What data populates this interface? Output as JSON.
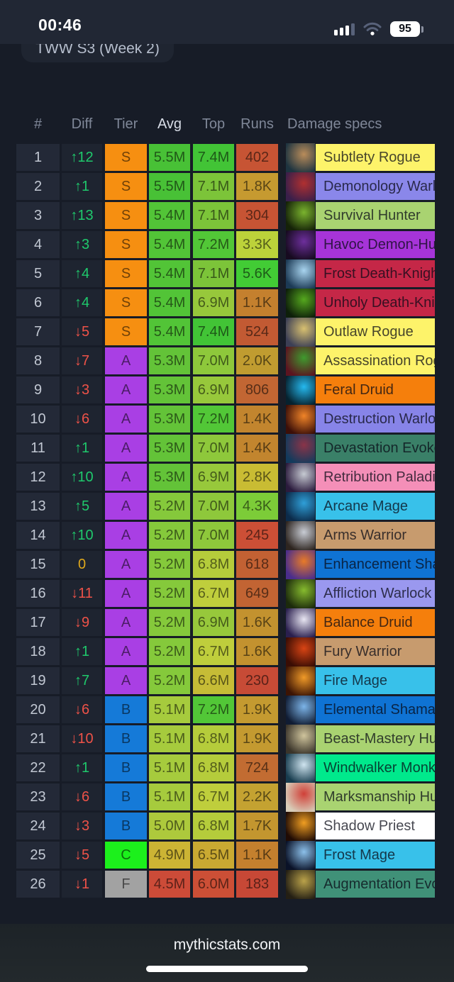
{
  "status_bar": {
    "time": "00:46",
    "battery_percent": "95",
    "signal_icon": "cellular-signal-3-of-4",
    "wifi_icon": "wifi-weak"
  },
  "header_tab": {
    "clipped_text": "TWW S3 (Week 2)"
  },
  "table": {
    "columns": [
      "#",
      "Diff",
      "Tier",
      "Avg",
      "Top",
      "Runs",
      "Damage specs"
    ],
    "sorted_column": "Avg",
    "diff_colors": {
      "up": "#1fc96c",
      "down": "#ee5248",
      "zero": "#dfa81c"
    },
    "tier_colors": {
      "S": "#f68f11",
      "A": "#a93fe4",
      "B": "#157ad8",
      "C": "#1cf01c",
      "F": "#a2a2a2"
    },
    "rows": [
      {
        "rank": "1",
        "diff": "↑12",
        "dir": "up",
        "tier": "S",
        "avg": "5.5M",
        "avg_color": "#48c136",
        "top": "7.4M",
        "top_color": "#42c436",
        "runs": "402",
        "runs_color": "#c75434",
        "spec": "Subtlety Rogue",
        "spec_color": "#fdf36a",
        "icon": "subtlety-rogue-icon",
        "icon_colors": [
          "#1e3440",
          "#b98c5a"
        ]
      },
      {
        "rank": "2",
        "diff": "↑1",
        "dir": "up",
        "tier": "S",
        "avg": "5.5M",
        "avg_color": "#48c136",
        "top": "7.1M",
        "top_color": "#7cc439",
        "runs": "1.8K",
        "runs_color": "#c69a30",
        "spec": "Demonology Warlock",
        "spec_color": "#8a87ea",
        "icon": "demonology-warlock-icon",
        "icon_colors": [
          "#3a1f4a",
          "#b03030"
        ]
      },
      {
        "rank": "3",
        "diff": "↑13",
        "dir": "up",
        "tier": "S",
        "avg": "5.4M",
        "avg_color": "#52c437",
        "top": "7.1M",
        "top_color": "#7cc439",
        "runs": "304",
        "runs_color": "#c75434",
        "spec": "Survival Hunter",
        "spec_color": "#a9d371",
        "icon": "survival-hunter-icon",
        "icon_colors": [
          "#152208",
          "#7ab32e"
        ]
      },
      {
        "rank": "4",
        "diff": "↑3",
        "dir": "up",
        "tier": "S",
        "avg": "5.4M",
        "avg_color": "#52c437",
        "top": "7.2M",
        "top_color": "#52c737",
        "runs": "3.3K",
        "runs_color": "#bcd23a",
        "spec": "Havoc Demon-Hunter",
        "spec_color": "#a634d8",
        "icon": "havoc-demon-hunter-icon",
        "icon_colors": [
          "#170b20",
          "#6d2f9c"
        ]
      },
      {
        "rank": "5",
        "diff": "↑4",
        "dir": "up",
        "tier": "S",
        "avg": "5.4M",
        "avg_color": "#52c437",
        "top": "7.1M",
        "top_color": "#7cc439",
        "runs": "5.6K",
        "runs_color": "#42cc35",
        "spec": "Frost Death-Knight",
        "spec_color": "#c52747",
        "icon": "frost-death-knight-icon",
        "icon_colors": [
          "#1c3a55",
          "#a8d4ef"
        ]
      },
      {
        "rank": "6",
        "diff": "↑4",
        "dir": "up",
        "tier": "S",
        "avg": "5.4M",
        "avg_color": "#52c437",
        "top": "6.9M",
        "top_color": "#97c83b",
        "runs": "1.1K",
        "runs_color": "#c4802e",
        "spec": "Unholy Death-Knight",
        "spec_color": "#c52747",
        "icon": "unholy-death-knight-icon",
        "icon_colors": [
          "#0e1f0a",
          "#55a81e"
        ]
      },
      {
        "rank": "7",
        "diff": "↓5",
        "dir": "down",
        "tier": "S",
        "avg": "5.4M",
        "avg_color": "#52c437",
        "top": "7.4M",
        "top_color": "#42c436",
        "runs": "524",
        "runs_color": "#c25a33",
        "spec": "Outlaw Rogue",
        "spec_color": "#fdf36a",
        "icon": "outlaw-rogue-icon",
        "icon_colors": [
          "#3c3f55",
          "#d8c070"
        ]
      },
      {
        "rank": "8",
        "diff": "↓7",
        "dir": "down",
        "tier": "A",
        "avg": "5.3M",
        "avg_color": "#63c338",
        "top": "7.0M",
        "top_color": "#8ec83b",
        "runs": "2.0K",
        "runs_color": "#c09c30",
        "spec": "Assassination Rogue",
        "spec_color": "#fdf36a",
        "icon": "assassination-rogue-icon",
        "icon_colors": [
          "#5c1420",
          "#3f9a2e"
        ]
      },
      {
        "rank": "9",
        "diff": "↓3",
        "dir": "down",
        "tier": "A",
        "avg": "5.3M",
        "avg_color": "#63c338",
        "top": "6.9M",
        "top_color": "#97c83b",
        "runs": "806",
        "runs_color": "#c26633",
        "spec": "Feral Druid",
        "spec_color": "#f57f0c",
        "icon": "feral-druid-icon",
        "icon_colors": [
          "#06222f",
          "#25b9ef"
        ]
      },
      {
        "rank": "10",
        "diff": "↓6",
        "dir": "down",
        "tier": "A",
        "avg": "5.3M",
        "avg_color": "#63c338",
        "top": "7.2M",
        "top_color": "#52c737",
        "runs": "1.4K",
        "runs_color": "#c2852e",
        "spec": "Destruction Warlock",
        "spec_color": "#8784e8",
        "icon": "destruction-warlock-icon",
        "icon_colors": [
          "#3c0f08",
          "#f08428"
        ]
      },
      {
        "rank": "11",
        "diff": "↑1",
        "dir": "up",
        "tier": "A",
        "avg": "5.3M",
        "avg_color": "#63c338",
        "top": "7.0M",
        "top_color": "#8ec83b",
        "runs": "1.4K",
        "runs_color": "#c2852e",
        "spec": "Devastation Evoker",
        "spec_color": "#3a8068",
        "icon": "devastation-evoker-icon",
        "icon_colors": [
          "#133a5c",
          "#8a3448"
        ]
      },
      {
        "rank": "12",
        "diff": "↑10",
        "dir": "up",
        "tier": "A",
        "avg": "5.3M",
        "avg_color": "#63c338",
        "top": "6.9M",
        "top_color": "#97c83b",
        "runs": "2.8K",
        "runs_color": "#c9bc33",
        "spec": "Retribution Paladin",
        "spec_color": "#f48fb8",
        "icon": "retribution-paladin-icon",
        "icon_colors": [
          "#2b1b3d",
          "#c6cad2"
        ]
      },
      {
        "rank": "13",
        "diff": "↑5",
        "dir": "up",
        "tier": "A",
        "avg": "5.2M",
        "avg_color": "#85c93b",
        "top": "7.0M",
        "top_color": "#8ec83b",
        "runs": "4.3K",
        "runs_color": "#7ccc38",
        "spec": "Arcane Mage",
        "spec_color": "#38c1ea",
        "icon": "arcane-mage-icon",
        "icon_colors": [
          "#0c2b4a",
          "#2f9fd8"
        ]
      },
      {
        "rank": "14",
        "diff": "↑10",
        "dir": "up",
        "tier": "A",
        "avg": "5.2M",
        "avg_color": "#85c93b",
        "top": "7.0M",
        "top_color": "#8ec83b",
        "runs": "245",
        "runs_color": "#cc4f36",
        "spec": "Arms Warrior",
        "spec_color": "#c79b6e",
        "icon": "arms-warrior-icon",
        "icon_colors": [
          "#2e2520",
          "#c8ccd4"
        ]
      },
      {
        "rank": "15",
        "diff": "0",
        "dir": "zero",
        "tier": "A",
        "avg": "5.2M",
        "avg_color": "#85c93b",
        "top": "6.8M",
        "top_color": "#b5cc3b",
        "runs": "618",
        "runs_color": "#c26133",
        "spec": "Enhancement Shaman",
        "spec_color": "#0f73d4",
        "icon": "enhancement-shaman-icon",
        "icon_colors": [
          "#4a2d8c",
          "#e87a28"
        ]
      },
      {
        "rank": "16",
        "diff": "↓11",
        "dir": "down",
        "tier": "A",
        "avg": "5.2M",
        "avg_color": "#85c93b",
        "top": "6.7M",
        "top_color": "#bfce3c",
        "runs": "649",
        "runs_color": "#c26433",
        "spec": "Affliction Warlock",
        "spec_color": "#9a98ef",
        "icon": "affliction-warlock-icon",
        "icon_colors": [
          "#1c2a0c",
          "#86bb2e"
        ]
      },
      {
        "rank": "17",
        "diff": "↓9",
        "dir": "down",
        "tier": "A",
        "avg": "5.2M",
        "avg_color": "#85c93b",
        "top": "6.9M",
        "top_color": "#97c83b",
        "runs": "1.6K",
        "runs_color": "#c3922f",
        "spec": "Balance Druid",
        "spec_color": "#f57f0c",
        "icon": "balance-druid-icon",
        "icon_colors": [
          "#2a1f4e",
          "#e8e6f2"
        ]
      },
      {
        "rank": "18",
        "diff": "↑1",
        "dir": "up",
        "tier": "A",
        "avg": "5.2M",
        "avg_color": "#85c93b",
        "top": "6.7M",
        "top_color": "#bfce3c",
        "runs": "1.6K",
        "runs_color": "#c3922f",
        "spec": "Fury Warrior",
        "spec_color": "#c79b6e",
        "icon": "fury-warrior-icon",
        "icon_colors": [
          "#3a0d04",
          "#d84414"
        ]
      },
      {
        "rank": "19",
        "diff": "↑7",
        "dir": "up",
        "tier": "A",
        "avg": "5.2M",
        "avg_color": "#85c93b",
        "top": "6.6M",
        "top_color": "#c6bc36",
        "runs": "230",
        "runs_color": "#c74b36",
        "spec": "Fire Mage",
        "spec_color": "#38c1ea",
        "icon": "fire-mage-icon",
        "icon_colors": [
          "#3c1404",
          "#f09a28"
        ]
      },
      {
        "rank": "20",
        "diff": "↓6",
        "dir": "down",
        "tier": "B",
        "avg": "5.1M",
        "avg_color": "#a6cb3d",
        "top": "7.2M",
        "top_color": "#52c737",
        "runs": "1.9K",
        "runs_color": "#c49a30",
        "spec": "Elemental Shaman",
        "spec_color": "#0f73d4",
        "icon": "elemental-shaman-icon",
        "icon_colors": [
          "#101c33",
          "#7cb4e8"
        ]
      },
      {
        "rank": "21",
        "diff": "↓10",
        "dir": "down",
        "tier": "B",
        "avg": "5.1M",
        "avg_color": "#a6cb3d",
        "top": "6.8M",
        "top_color": "#b5cc3b",
        "runs": "1.9K",
        "runs_color": "#c49a30",
        "spec": "Beast-Mastery Hunter",
        "spec_color": "#a9d371",
        "icon": "beast-mastery-hunter-icon",
        "icon_colors": [
          "#3a342a",
          "#cfc49c"
        ]
      },
      {
        "rank": "22",
        "diff": "↑1",
        "dir": "up",
        "tier": "B",
        "avg": "5.1M",
        "avg_color": "#a6cb3d",
        "top": "6.8M",
        "top_color": "#b5cc3b",
        "runs": "724",
        "runs_color": "#c26c32",
        "spec": "Windwalker Monk",
        "spec_color": "#00e98c",
        "icon": "windwalker-monk-icon",
        "icon_colors": [
          "#173c4e",
          "#cfe4ef"
        ]
      },
      {
        "rank": "23",
        "diff": "↓6",
        "dir": "down",
        "tier": "B",
        "avg": "5.1M",
        "avg_color": "#a6cb3d",
        "top": "6.7M",
        "top_color": "#bfce3c",
        "runs": "2.2K",
        "runs_color": "#c4a231",
        "spec": "Marksmanship Hunter",
        "spec_color": "#a9d371",
        "icon": "marksmanship-hunter-icon",
        "icon_colors": [
          "#d8cdb8",
          "#d04038"
        ]
      },
      {
        "rank": "24",
        "diff": "↓3",
        "dir": "down",
        "tier": "B",
        "avg": "5.0M",
        "avg_color": "#adc93c",
        "top": "6.8M",
        "top_color": "#b5cc3b",
        "runs": "1.7K",
        "runs_color": "#c3962f",
        "spec": "Shadow Priest",
        "spec_color": "#ffffff",
        "icon": "shadow-priest-icon",
        "icon_colors": [
          "#200b04",
          "#f09e22"
        ]
      },
      {
        "rank": "25",
        "diff": "↓5",
        "dir": "down",
        "tier": "C",
        "avg": "4.9M",
        "avg_color": "#ccb434",
        "top": "6.5M",
        "top_color": "#c9a932",
        "runs": "1.1K",
        "runs_color": "#c4802e",
        "spec": "Frost Mage",
        "spec_color": "#38c1ea",
        "icon": "frost-mage-icon",
        "icon_colors": [
          "#0a1228",
          "#8cc0ea"
        ]
      },
      {
        "rank": "26",
        "diff": "↓1",
        "dir": "down",
        "tier": "F",
        "avg": "4.5M",
        "avg_color": "#cc4b38",
        "top": "6.0M",
        "top_color": "#cc4f36",
        "runs": "183",
        "runs_color": "#c74836",
        "spec": "Augmentation Evoker",
        "spec_color": "#409178",
        "icon": "augmentation-evoker-icon",
        "icon_colors": [
          "#241f14",
          "#baa24a"
        ]
      }
    ]
  },
  "footer": {
    "site": "mythicstats.com"
  }
}
